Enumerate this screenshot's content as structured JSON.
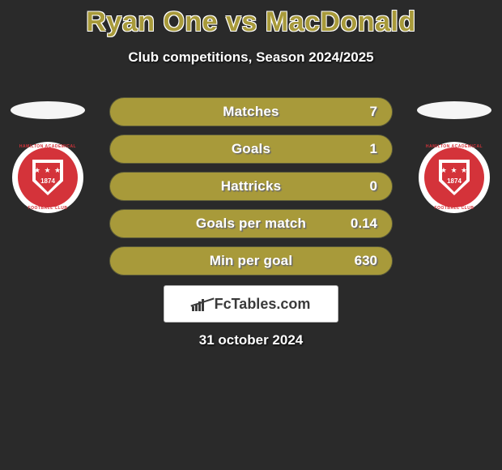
{
  "title": "Ryan One vs MacDonald",
  "subtitle": "Club competitions, Season 2024/2025",
  "date": "31 october 2024",
  "footer_brand": "FcTables.com",
  "colors": {
    "background": "#2a2a2a",
    "accent": "#a89a3a",
    "bar_base": "#8a8030",
    "bar_fill": "#a89a3a",
    "crest_red": "#d4333a",
    "text": "#ffffff"
  },
  "bars": [
    {
      "label": "Matches",
      "value": "7",
      "fill_pct": 100
    },
    {
      "label": "Goals",
      "value": "1",
      "fill_pct": 100
    },
    {
      "label": "Hattricks",
      "value": "0",
      "fill_pct": 100
    },
    {
      "label": "Goals per match",
      "value": "0.14",
      "fill_pct": 100
    },
    {
      "label": "Min per goal",
      "value": "630",
      "fill_pct": 100
    }
  ],
  "crest": {
    "ring_text_top": "HAMILTON ACADEMICAL",
    "ring_text_bottom": "FOOTBALL CLUB",
    "year": "1874"
  }
}
